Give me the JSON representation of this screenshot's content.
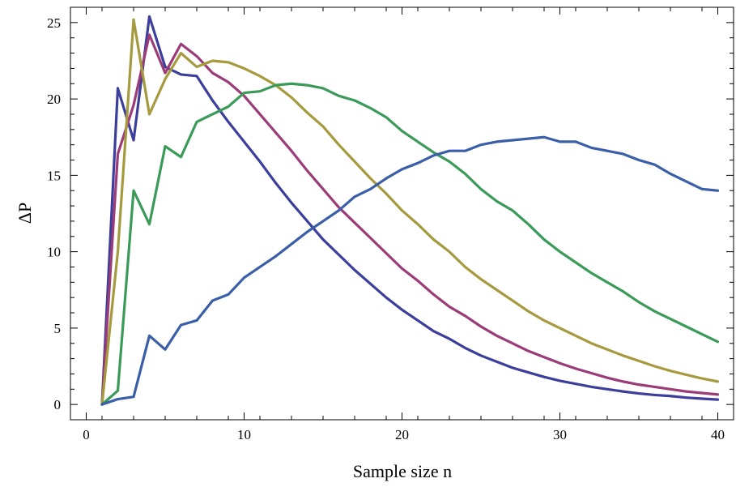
{
  "chart_data": {
    "type": "line",
    "title": "",
    "xlabel": "Sample size n",
    "ylabel": "ΔP",
    "xlim": [
      -1,
      41
    ],
    "ylim": [
      -1,
      26
    ],
    "xticks": [
      0,
      10,
      20,
      30,
      40
    ],
    "yticks": [
      0,
      5,
      10,
      15,
      20,
      25
    ],
    "grid": false,
    "legend": "none",
    "x": [
      1,
      2,
      3,
      4,
      5,
      6,
      7,
      8,
      9,
      10,
      11,
      12,
      13,
      14,
      15,
      16,
      17,
      18,
      19,
      20,
      21,
      22,
      23,
      24,
      25,
      26,
      27,
      28,
      29,
      30,
      31,
      32,
      33,
      34,
      35,
      36,
      37,
      38,
      39,
      40
    ],
    "series": [
      {
        "color": "#3c3e9c",
        "values": [
          0,
          20.7,
          17.3,
          25.4,
          22.1,
          21.6,
          21.5,
          19.9,
          18.5,
          17.2,
          15.9,
          14.5,
          13.2,
          12.0,
          10.8,
          9.8,
          8.8,
          7.9,
          7.0,
          6.2,
          5.5,
          4.8,
          4.3,
          3.7,
          3.2,
          2.8,
          2.4,
          2.1,
          1.8,
          1.55,
          1.35,
          1.15,
          1.0,
          0.85,
          0.72,
          0.62,
          0.55,
          0.45,
          0.38,
          0.32
        ]
      },
      {
        "color": "#9b3c78",
        "values": [
          0,
          16.4,
          19.6,
          24.2,
          21.7,
          23.6,
          22.8,
          21.7,
          21.1,
          20.2,
          19.0,
          17.8,
          16.6,
          15.3,
          14.1,
          12.9,
          11.9,
          10.9,
          9.9,
          8.9,
          8.1,
          7.2,
          6.4,
          5.8,
          5.1,
          4.5,
          4.0,
          3.5,
          3.1,
          2.7,
          2.35,
          2.05,
          1.75,
          1.5,
          1.3,
          1.15,
          1.0,
          0.85,
          0.75,
          0.65
        ]
      },
      {
        "color": "#a59a3e",
        "values": [
          0,
          10.0,
          25.2,
          19.0,
          21.3,
          23.0,
          22.1,
          22.5,
          22.4,
          22.0,
          21.5,
          20.9,
          20.1,
          19.1,
          18.2,
          17.0,
          15.9,
          14.8,
          13.8,
          12.7,
          11.8,
          10.8,
          10.0,
          9.0,
          8.2,
          7.5,
          6.8,
          6.1,
          5.5,
          5.0,
          4.5,
          4.0,
          3.6,
          3.2,
          2.85,
          2.5,
          2.2,
          1.95,
          1.7,
          1.5
        ]
      },
      {
        "color": "#3a9a58",
        "values": [
          0,
          0.9,
          14.0,
          11.8,
          16.9,
          16.2,
          18.5,
          19.0,
          19.5,
          20.4,
          20.5,
          20.9,
          21.0,
          20.9,
          20.7,
          20.2,
          19.9,
          19.4,
          18.8,
          17.9,
          17.2,
          16.5,
          15.9,
          15.1,
          14.1,
          13.3,
          12.7,
          11.8,
          10.8,
          10.0,
          9.3,
          8.6,
          8.0,
          7.4,
          6.7,
          6.1,
          5.6,
          5.1,
          4.6,
          4.1
        ]
      },
      {
        "color": "#3a5ea8",
        "values": [
          0,
          0.35,
          0.5,
          4.5,
          3.6,
          5.2,
          5.5,
          6.8,
          7.2,
          8.3,
          9.0,
          9.7,
          10.5,
          11.3,
          12.0,
          12.7,
          13.6,
          14.1,
          14.8,
          15.4,
          15.8,
          16.3,
          16.6,
          16.6,
          17.0,
          17.2,
          17.3,
          17.4,
          17.5,
          17.2,
          17.2,
          16.8,
          16.6,
          16.4,
          16.0,
          15.7,
          15.1,
          14.6,
          14.1,
          14.0
        ]
      }
    ]
  }
}
